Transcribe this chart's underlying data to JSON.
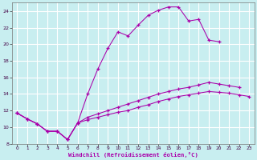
{
  "background_color": "#c8eef0",
  "grid_color": "#ffffff",
  "line_color": "#aa00aa",
  "xlabel": "Windchill (Refroidissement éolien,°C)",
  "xlim_min": -0.5,
  "xlim_max": 23.5,
  "ylim_min": 8,
  "ylim_max": 25,
  "yticks": [
    8,
    10,
    12,
    14,
    16,
    18,
    20,
    22,
    24
  ],
  "xticks": [
    0,
    1,
    2,
    3,
    4,
    5,
    6,
    7,
    8,
    9,
    10,
    11,
    12,
    13,
    14,
    15,
    16,
    17,
    18,
    19,
    20,
    21,
    22,
    23
  ],
  "line1_x": [
    0,
    1,
    2,
    3,
    4,
    5,
    6,
    7,
    8,
    9,
    10,
    11,
    12,
    13,
    14,
    15,
    16,
    17,
    18,
    19,
    20
  ],
  "line1_y": [
    11.7,
    11.0,
    10.4,
    9.5,
    9.5,
    8.5,
    10.5,
    14.0,
    17.0,
    19.5,
    21.5,
    21.0,
    22.3,
    23.5,
    24.1,
    24.5,
    24.5,
    22.8,
    23.0,
    20.5,
    20.3
  ],
  "line2_x": [
    0,
    1,
    2,
    3,
    4,
    5,
    6,
    7,
    8,
    9,
    10,
    11,
    12,
    13,
    14,
    15,
    16,
    17,
    18,
    19,
    20,
    21,
    22,
    23
  ],
  "line2_y": [
    11.7,
    11.0,
    10.4,
    9.5,
    9.5,
    8.5,
    10.5,
    10.9,
    11.2,
    11.5,
    11.8,
    12.0,
    12.4,
    12.7,
    13.1,
    13.4,
    13.7,
    13.9,
    14.1,
    14.3,
    14.2,
    14.1,
    13.9,
    13.7
  ],
  "line3_x": [
    0,
    1,
    2,
    3,
    4,
    5,
    6,
    7,
    8,
    9,
    10,
    11,
    12,
    13,
    14,
    15,
    16,
    17,
    18,
    19,
    20,
    21,
    22
  ],
  "line3_y": [
    11.7,
    11.0,
    10.4,
    9.5,
    9.5,
    8.5,
    10.5,
    11.2,
    11.6,
    12.0,
    12.4,
    12.8,
    13.2,
    13.6,
    14.0,
    14.3,
    14.6,
    14.8,
    15.1,
    15.4,
    15.2,
    15.0,
    14.8
  ]
}
